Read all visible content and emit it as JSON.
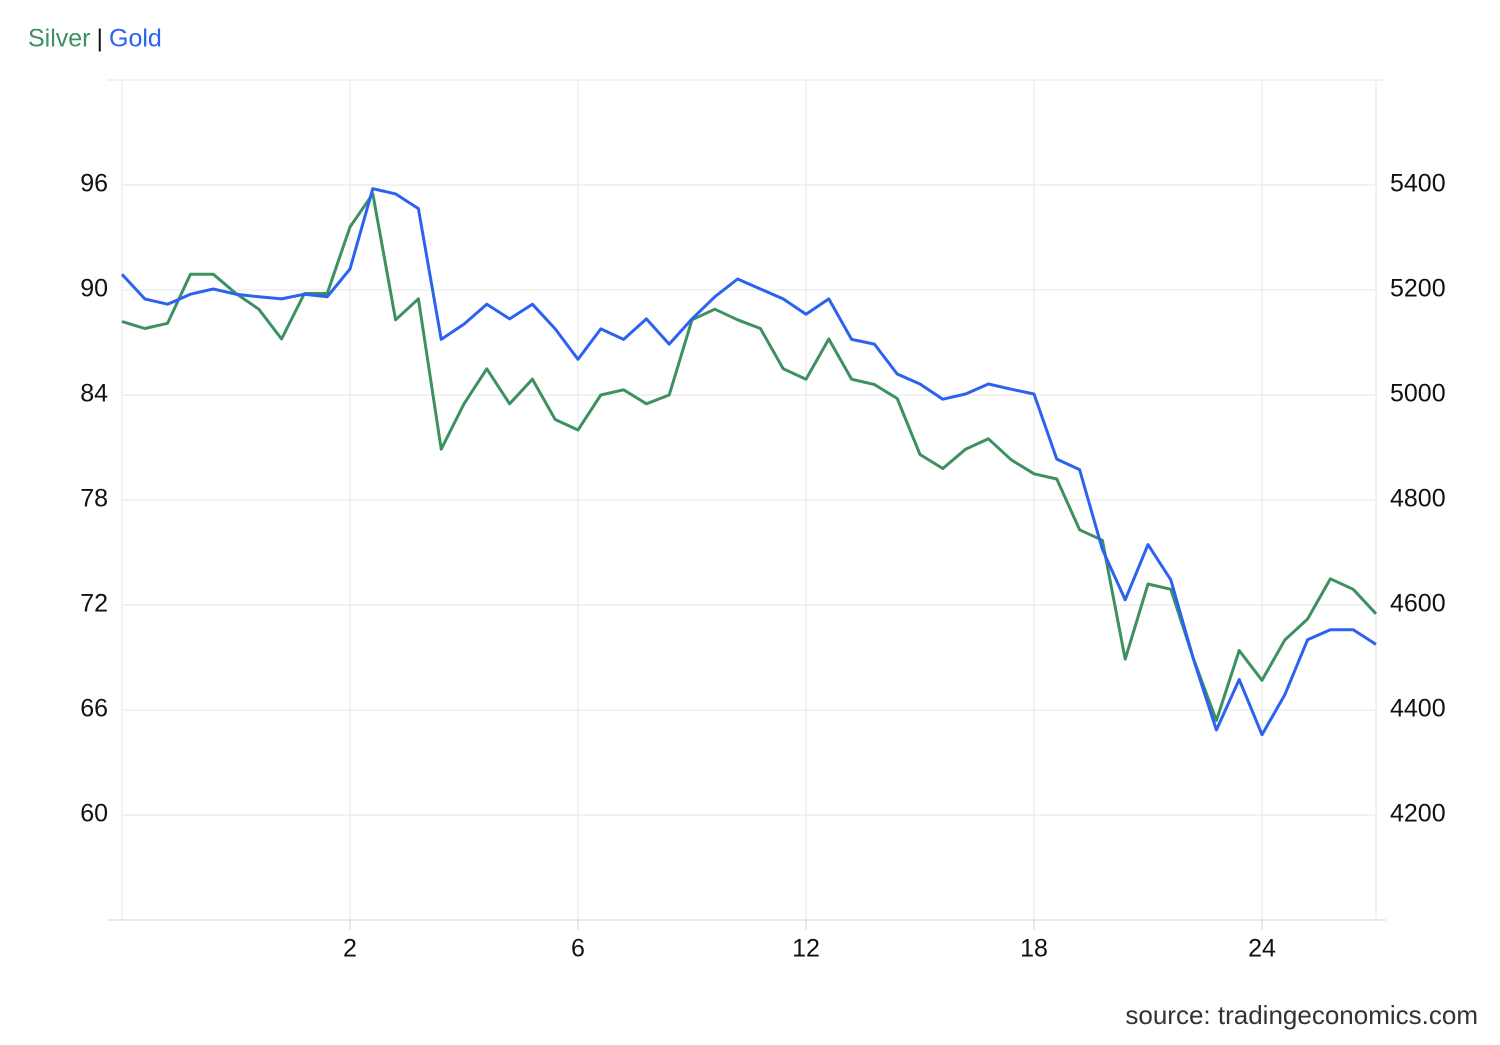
{
  "chart_data": {
    "type": "line",
    "legend_separator": "|",
    "source": "source: tradingeconomics.com",
    "x": [
      0,
      2,
      4,
      6,
      8,
      10,
      12,
      14,
      16,
      18,
      20,
      22,
      24,
      26,
      28,
      30,
      32,
      34,
      36,
      38,
      40,
      42,
      44,
      46,
      48,
      50,
      52,
      54,
      56,
      58,
      60,
      62,
      64,
      66,
      68,
      70,
      72,
      74,
      76,
      78,
      80,
      82,
      84,
      86,
      88,
      90,
      92,
      94,
      96,
      98,
      100,
      102,
      104,
      106,
      108,
      110
    ],
    "xlim": [
      0,
      110
    ],
    "xticks": [
      {
        "value": 20,
        "label": "2"
      },
      {
        "value": 40,
        "label": "6"
      },
      {
        "value": 60,
        "label": "12"
      },
      {
        "value": 80,
        "label": "18"
      },
      {
        "value": 100,
        "label": "24"
      }
    ],
    "ylim": [
      54,
      102
    ],
    "yticks": [
      60,
      66,
      72,
      78,
      84,
      90,
      96
    ],
    "y2lim": [
      4000,
      5600
    ],
    "y2ticks": [
      4200,
      4400,
      4600,
      4800,
      5000,
      5200,
      5400
    ],
    "grid": true,
    "series": [
      {
        "name": "Silver",
        "color": "#3d9160",
        "values": [
          88.2,
          87.8,
          88.1,
          90.9,
          90.9,
          89.8,
          88.9,
          87.2,
          89.8,
          89.8,
          93.6,
          95.5,
          88.3,
          89.5,
          80.9,
          83.5,
          85.5,
          83.5,
          84.9,
          82.6,
          82.0,
          84.0,
          84.3,
          83.5,
          84.0,
          88.3,
          88.9,
          88.3,
          87.8,
          85.5,
          84.9,
          87.2,
          84.9,
          84.6,
          83.8,
          80.6,
          79.8,
          80.9,
          81.5,
          80.3,
          79.5,
          79.2,
          76.3,
          75.7,
          68.9,
          73.2,
          72.9,
          68.9,
          65.4,
          69.4,
          67.7,
          70.0,
          71.2,
          73.5,
          72.9,
          71.5
        ]
      },
      {
        "name": "Gold",
        "color": "#2c62f0",
        "axis": "y2",
        "values": [
          5230,
          5183,
          5173,
          5192,
          5202,
          5192,
          5187,
          5183,
          5192,
          5187,
          5240,
          5393,
          5383,
          5355,
          5106,
          5135,
          5173,
          5145,
          5173,
          5126,
          5068,
          5126,
          5106,
          5145,
          5097,
          5145,
          5187,
          5221,
          5202,
          5183,
          5154,
          5183,
          5106,
          5097,
          5040,
          5021,
          4992,
          5002,
          5021,
          5011,
          5002,
          4878,
          4858,
          4706,
          4610,
          4715,
          4648,
          4496,
          4362,
          4458,
          4353,
          4429,
          4534,
          4553,
          4553,
          4525
        ]
      }
    ]
  }
}
